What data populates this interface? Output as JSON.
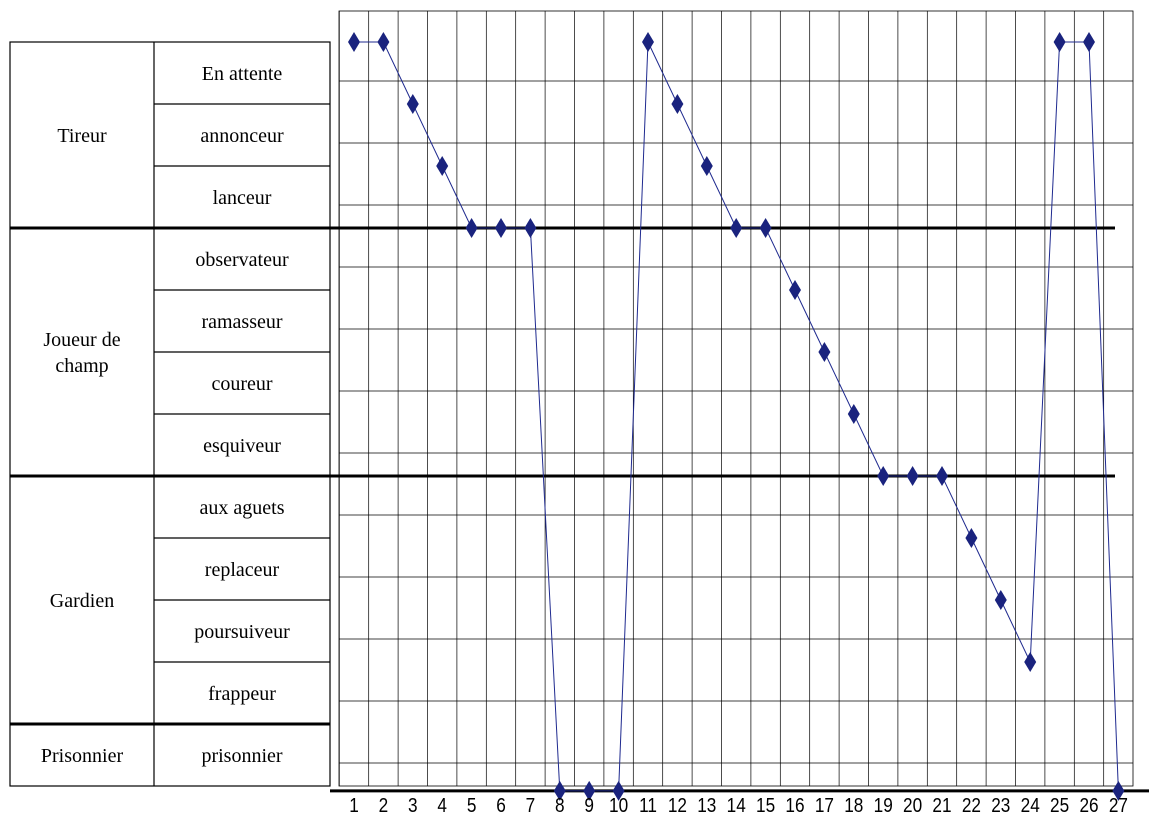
{
  "chart_data": {
    "type": "line",
    "groups": [
      {
        "label_lines": [
          "Tireur"
        ],
        "roles": [
          "En attente",
          "annonceur",
          "lanceur"
        ]
      },
      {
        "label_lines": [
          "Joueur de",
          "champ"
        ],
        "roles": [
          "observateur",
          "ramasseur",
          "coureur",
          "esquiveur"
        ]
      },
      {
        "label_lines": [
          "Gardien"
        ],
        "roles": [
          "aux aguets",
          "replaceur",
          "poursuiveur",
          "frappeur"
        ]
      },
      {
        "label_lines": [
          "Prisonnier"
        ],
        "roles": [
          "prisonnier"
        ]
      }
    ],
    "x": [
      1,
      2,
      3,
      4,
      5,
      6,
      7,
      8,
      9,
      10,
      11,
      12,
      13,
      14,
      15,
      16,
      17,
      18,
      19,
      20,
      21,
      22,
      23,
      24,
      25,
      26,
      27
    ],
    "y_levels": [
      0,
      0,
      1,
      2,
      3,
      3,
      3,
      12,
      12,
      12,
      0,
      1,
      2,
      3,
      3,
      4,
      5,
      6,
      7,
      7,
      7,
      8,
      9,
      10,
      0,
      0,
      12
    ],
    "y_level_note": "",
    "xlabel": "",
    "ylabel": "",
    "grid": true,
    "marker": "diamond",
    "colors": {
      "series": "#1f2a8f",
      "marker": "#1a237e",
      "grid": "#000000"
    }
  }
}
